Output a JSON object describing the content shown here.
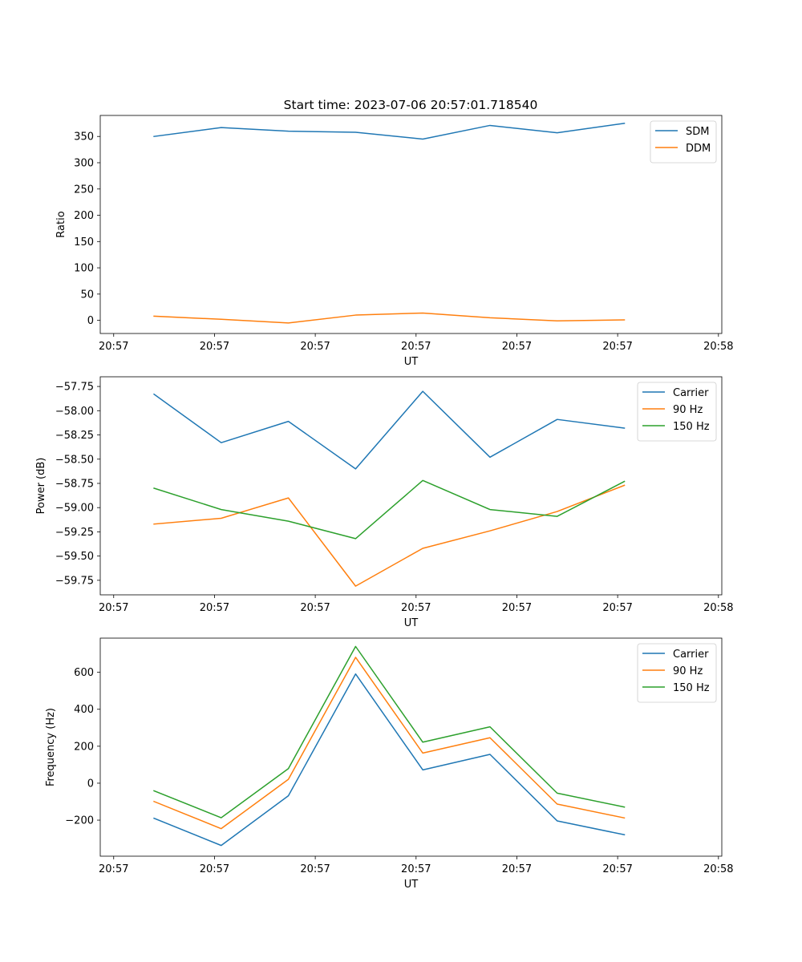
{
  "figure": {
    "title": "Start time: 2023-07-06 20:57:01.718540"
  },
  "colors": {
    "blue": "#1f77b4",
    "orange": "#ff7f0e",
    "green": "#2ca02c",
    "axis": "#000000",
    "legend_border": "#cccccc"
  },
  "chart_data": [
    {
      "type": "line",
      "title": "Start time: 2023-07-06 20:57:01.718540",
      "xlabel": "UT",
      "ylabel": "Ratio",
      "x": [
        1,
        2,
        3,
        4,
        5,
        6,
        7,
        8
      ],
      "xlim": [
        0.2,
        9.45
      ],
      "x_ticks": [
        0.4,
        1.9,
        3.4,
        4.9,
        6.4,
        7.9,
        9.4
      ],
      "x_tick_labels": [
        "20:57",
        "20:57",
        "20:57",
        "20:57",
        "20:57",
        "20:57",
        "20:58"
      ],
      "ylim": [
        -25,
        390
      ],
      "y_ticks": [
        0,
        50,
        100,
        150,
        200,
        250,
        300,
        350
      ],
      "y_tick_labels": [
        "0",
        "50",
        "100",
        "150",
        "200",
        "250",
        "300",
        "350"
      ],
      "legend_position": "top-right",
      "series": [
        {
          "name": "SDM",
          "color": "#1f77b4",
          "values": [
            350,
            367,
            360,
            358,
            345,
            371,
            357,
            375
          ]
        },
        {
          "name": "DDM",
          "color": "#ff7f0e",
          "values": [
            8,
            2,
            -5,
            10,
            14,
            5,
            -1,
            1
          ]
        }
      ]
    },
    {
      "type": "line",
      "title": "",
      "xlabel": "UT",
      "ylabel": "Power (dB)",
      "x": [
        1,
        2,
        3,
        4,
        5,
        6,
        7,
        8
      ],
      "xlim": [
        0.2,
        9.45
      ],
      "x_ticks": [
        0.4,
        1.9,
        3.4,
        4.9,
        6.4,
        7.9,
        9.4
      ],
      "x_tick_labels": [
        "20:57",
        "20:57",
        "20:57",
        "20:57",
        "20:57",
        "20:57",
        "20:58"
      ],
      "ylim": [
        -59.9,
        -57.65
      ],
      "y_ticks": [
        -59.75,
        -59.5,
        -59.25,
        -59.0,
        -58.75,
        -58.5,
        -58.25,
        -58.0,
        -57.75
      ],
      "y_tick_labels": [
        "−59.75",
        "−59.50",
        "−59.25",
        "−59.00",
        "−58.75",
        "−58.50",
        "−58.25",
        "−58.00",
        "−57.75"
      ],
      "legend_position": "top-right",
      "series": [
        {
          "name": "Carrier",
          "color": "#1f77b4",
          "values": [
            -57.83,
            -58.33,
            -58.11,
            -58.6,
            -57.8,
            -58.48,
            -58.09,
            -58.18
          ]
        },
        {
          "name": "90 Hz",
          "color": "#ff7f0e",
          "values": [
            -59.17,
            -59.11,
            -58.9,
            -59.81,
            -59.42,
            -59.24,
            -59.04,
            -58.77
          ]
        },
        {
          "name": "150 Hz",
          "color": "#2ca02c",
          "values": [
            -58.8,
            -59.02,
            -59.14,
            -59.32,
            -58.72,
            -59.02,
            -59.09,
            -58.73
          ]
        }
      ]
    },
    {
      "type": "line",
      "title": "",
      "xlabel": "UT",
      "ylabel": "Frequency (Hz)",
      "x": [
        1,
        2,
        3,
        4,
        5,
        6,
        7,
        8
      ],
      "xlim": [
        0.2,
        9.45
      ],
      "x_ticks": [
        0.4,
        1.9,
        3.4,
        4.9,
        6.4,
        7.9,
        9.4
      ],
      "x_tick_labels": [
        "20:57",
        "20:57",
        "20:57",
        "20:57",
        "20:57",
        "20:57",
        "20:58"
      ],
      "ylim": [
        -395,
        785
      ],
      "y_ticks": [
        -200,
        0,
        200,
        400,
        600
      ],
      "y_tick_labels": [
        "−200",
        "0",
        "200",
        "400",
        "600"
      ],
      "legend_position": "top-right",
      "series": [
        {
          "name": "Carrier",
          "color": "#1f77b4",
          "values": [
            -190,
            -337,
            -68,
            591,
            72,
            156,
            -204,
            -279
          ]
        },
        {
          "name": "90 Hz",
          "color": "#ff7f0e",
          "values": [
            -99,
            -246,
            21,
            681,
            163,
            246,
            -113,
            -188
          ]
        },
        {
          "name": "150 Hz",
          "color": "#2ca02c",
          "values": [
            -41,
            -187,
            79,
            740,
            222,
            305,
            -54,
            -129
          ]
        }
      ]
    }
  ]
}
